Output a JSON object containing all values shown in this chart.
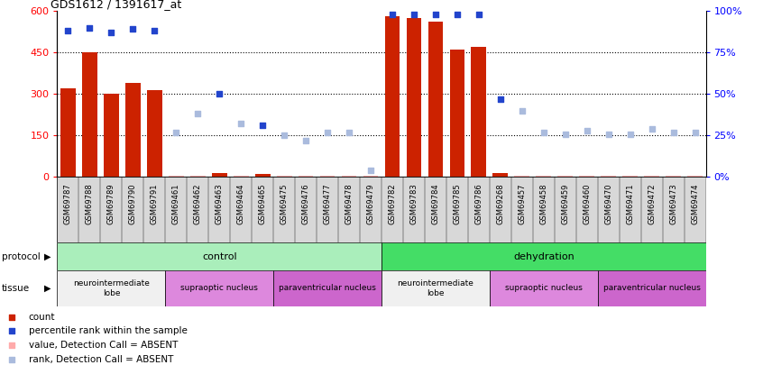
{
  "title": "GDS1612 / 1391617_at",
  "samples": [
    "GSM69787",
    "GSM69788",
    "GSM69789",
    "GSM69790",
    "GSM69791",
    "GSM69461",
    "GSM69462",
    "GSM69463",
    "GSM69464",
    "GSM69465",
    "GSM69475",
    "GSM69476",
    "GSM69477",
    "GSM69478",
    "GSM69479",
    "GSM69782",
    "GSM69783",
    "GSM69784",
    "GSM69785",
    "GSM69786",
    "GSM69268",
    "GSM69457",
    "GSM69458",
    "GSM69459",
    "GSM69460",
    "GSM69470",
    "GSM69471",
    "GSM69472",
    "GSM69473",
    "GSM69474"
  ],
  "bar_values": [
    320,
    450,
    300,
    340,
    315,
    5,
    5,
    15,
    5,
    10,
    5,
    5,
    5,
    5,
    5,
    580,
    575,
    560,
    460,
    470,
    15,
    5,
    5,
    5,
    5,
    5,
    5,
    5,
    5,
    5
  ],
  "bar_absent": [
    false,
    false,
    false,
    false,
    false,
    true,
    true,
    false,
    true,
    false,
    true,
    true,
    true,
    true,
    true,
    false,
    false,
    false,
    false,
    false,
    false,
    true,
    true,
    true,
    true,
    true,
    true,
    true,
    true,
    true
  ],
  "rank_values": [
    88,
    90,
    87,
    89,
    88,
    27,
    38,
    50,
    32,
    31,
    25,
    22,
    27,
    27,
    4,
    98,
    98,
    98,
    98,
    98,
    47,
    40,
    27,
    26,
    28,
    26,
    26,
    29,
    27,
    27
  ],
  "rank_absent": [
    false,
    false,
    false,
    false,
    false,
    true,
    true,
    false,
    true,
    false,
    true,
    true,
    true,
    true,
    true,
    false,
    false,
    false,
    false,
    false,
    false,
    true,
    true,
    true,
    true,
    true,
    true,
    true,
    true,
    true
  ],
  "protocol_groups": [
    {
      "label": "control",
      "start": 0,
      "end": 15,
      "color": "#AAEEBB"
    },
    {
      "label": "dehydration",
      "start": 15,
      "end": 30,
      "color": "#44DD66"
    }
  ],
  "ylim_left": [
    0,
    600
  ],
  "ylim_right": [
    0,
    100
  ],
  "yticks_left": [
    0,
    150,
    300,
    450,
    600
  ],
  "yticks_right": [
    0,
    25,
    50,
    75,
    100
  ],
  "bar_color_present": "#CC2200",
  "bar_color_absent": "#FFAAAA",
  "rank_color_present": "#2244CC",
  "rank_color_absent": "#AABBDD",
  "grid_color": "black",
  "neuro_color": "#F0F0F0",
  "supra_color": "#DD88DD",
  "para_color": "#CC66CC"
}
